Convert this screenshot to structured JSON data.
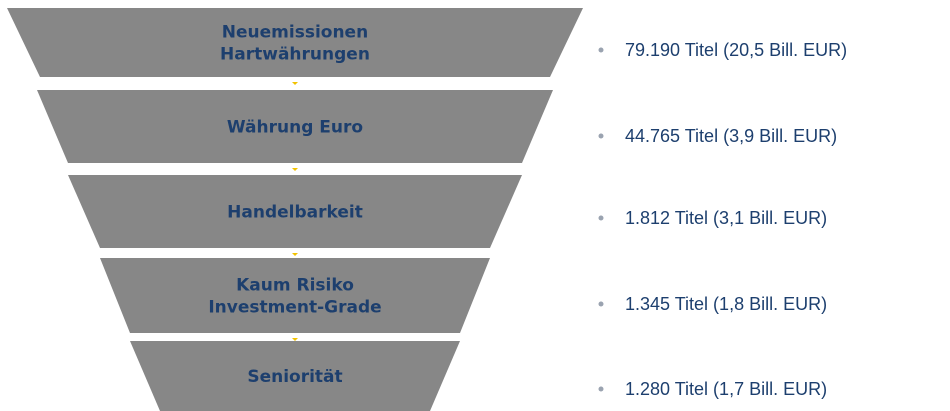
{
  "stages": [
    {
      "label": [
        "Neuemissionen",
        "Hartwährungen"
      ],
      "description": "79.190 Titel (20,5 Bill. EUR)"
    },
    {
      "label": [
        "Währung Euro"
      ],
      "description": "44.765 Titel (3,9 Bill. EUR)"
    },
    {
      "label": [
        "Handelbarkeit"
      ],
      "description": "1.812 Titel (3,1 Bill. EUR)"
    },
    {
      "label": [
        "Kaum Risiko",
        "Investment-Grade"
      ],
      "description": "1.345 Titel (1,8 Bill. EUR)"
    },
    {
      "label": [
        "Seniorität"
      ],
      "description": "1.280 Titel (1,7 Bill. EUR)"
    }
  ]
}
